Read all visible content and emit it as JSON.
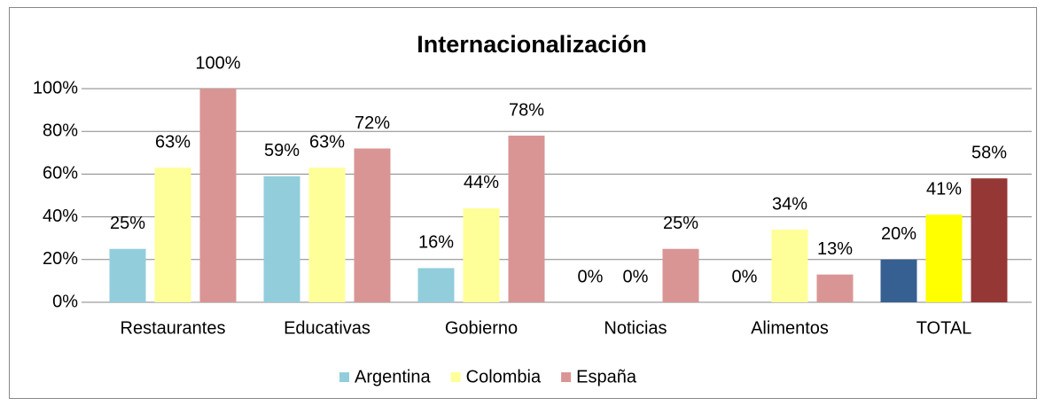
{
  "chart_data": {
    "type": "bar",
    "title": "Internacionalización",
    "categories": [
      "Restaurantes",
      "Educativas",
      "Gobierno",
      "Noticias",
      "Alimentos",
      "TOTAL"
    ],
    "series": [
      {
        "name": "Argentina",
        "color": "#92cddc",
        "colors": [
          "#92cddc",
          "#92cddc",
          "#92cddc",
          "#92cddc",
          "#92cddc",
          "#366092"
        ],
        "values": [
          25,
          59,
          16,
          0,
          0,
          20
        ],
        "value_labels": [
          "25%",
          "59%",
          "16%",
          "0%",
          "0%",
          "20%"
        ]
      },
      {
        "name": "Colombia",
        "color": "#ffff99",
        "colors": [
          "#ffff99",
          "#ffff99",
          "#ffff99",
          "#ffff99",
          "#ffff99",
          "#ffff00"
        ],
        "values": [
          63,
          63,
          44,
          0,
          34,
          41
        ],
        "value_labels": [
          "63%",
          "63%",
          "44%",
          "0%",
          "34%",
          "41%"
        ]
      },
      {
        "name": "España",
        "color": "#d99594",
        "colors": [
          "#d99594",
          "#d99594",
          "#d99594",
          "#d99594",
          "#d99594",
          "#953735"
        ],
        "values": [
          100,
          72,
          78,
          25,
          13,
          58
        ],
        "value_labels": [
          "100%",
          "72%",
          "78%",
          "25%",
          "13%",
          "58%"
        ]
      }
    ],
    "ylim": [
      0,
      100
    ],
    "yticks": [
      {
        "value": 0,
        "label": "0%"
      },
      {
        "value": 20,
        "label": "20%"
      },
      {
        "value": 40,
        "label": "40%"
      },
      {
        "value": 60,
        "label": "60%"
      },
      {
        "value": 80,
        "label": "80%"
      },
      {
        "value": 100,
        "label": "100%"
      }
    ],
    "grid": true,
    "legend": "bottom"
  }
}
